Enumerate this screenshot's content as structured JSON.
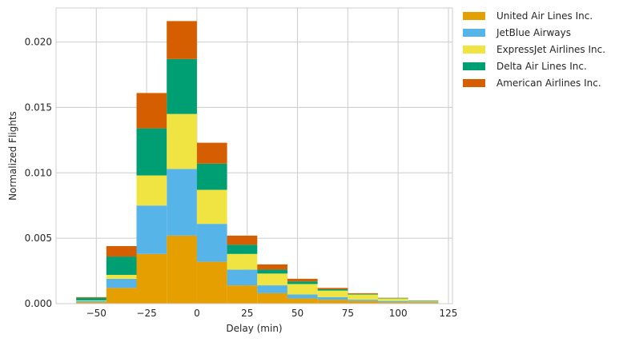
{
  "chart_data": {
    "type": "bar",
    "stacked": true,
    "title": "",
    "xlabel": "Delay (min)",
    "ylabel": "Normalized Flights",
    "xlim": [
      -70,
      127
    ],
    "ylim": [
      0,
      0.0226
    ],
    "xticks": [
      -50,
      -25,
      0,
      25,
      50,
      75,
      100,
      125
    ],
    "xtick_labels": [
      "−50",
      "−25",
      "0",
      "25",
      "50",
      "75",
      "100",
      "125"
    ],
    "yticks": [
      0.0,
      0.005,
      0.01,
      0.015,
      0.02
    ],
    "ytick_labels": [
      "0.000",
      "0.005",
      "0.010",
      "0.015",
      "0.020"
    ],
    "grid": true,
    "legend_position": "outside-top-right",
    "bin_edges": [
      -60,
      -45,
      -30,
      -15,
      0,
      15,
      30,
      45,
      60,
      75,
      90,
      105,
      120
    ],
    "series": [
      {
        "name": "United Air Lines Inc.",
        "color": "#E69F00",
        "values": [
          0.0001,
          0.0012,
          0.0038,
          0.0052,
          0.0032,
          0.0014,
          0.0008,
          0.0004,
          0.0003,
          0.0002,
          0.0001,
          0.0001
        ]
      },
      {
        "name": "JetBlue Airways",
        "color": "#56B4E9",
        "values": [
          0.0001,
          0.0007,
          0.0037,
          0.0051,
          0.0029,
          0.0012,
          0.0006,
          0.0003,
          0.0002,
          0.0001,
          0.0001,
          5e-05
        ]
      },
      {
        "name": "ExpressJet Airlines Inc.",
        "color": "#F0E442",
        "values": [
          5e-05,
          0.0003,
          0.0023,
          0.0042,
          0.0026,
          0.0012,
          0.0009,
          0.0008,
          0.0005,
          0.0004,
          0.0002,
          5e-05
        ]
      },
      {
        "name": "Delta Air Lines Inc.",
        "color": "#009E73",
        "values": [
          0.0002,
          0.0014,
          0.0036,
          0.0042,
          0.002,
          0.0007,
          0.0003,
          0.0002,
          0.0001,
          5e-05,
          3e-05,
          3e-05
        ]
      },
      {
        "name": "American Airlines Inc.",
        "color": "#D55E00",
        "values": [
          5e-05,
          0.0008,
          0.0027,
          0.0029,
          0.0016,
          0.0007,
          0.0004,
          0.0002,
          0.0001,
          5e-05,
          2e-05,
          2e-05
        ]
      }
    ]
  }
}
